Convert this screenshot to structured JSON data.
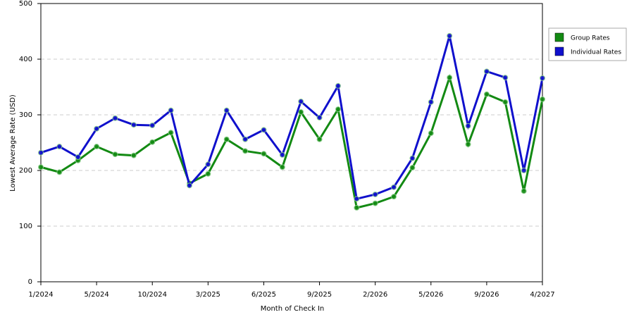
{
  "chart_data": {
    "type": "line",
    "x_label": "Month of Check In",
    "y_label": "Lowest Average Rate (USD)",
    "categories": [
      "1/2024",
      null,
      null,
      "5/2024",
      null,
      null,
      "10/2024",
      null,
      null,
      "3/2025",
      null,
      null,
      "6/2025",
      null,
      null,
      "9/2025",
      null,
      null,
      "2/2026",
      null,
      null,
      "5/2026",
      null,
      null,
      "9/2026",
      null,
      null,
      "4/2027"
    ],
    "series": [
      {
        "name": "Group Rates",
        "color": "#138a13",
        "values": [
          206,
          197,
          218,
          243,
          229,
          227,
          251,
          268,
          177,
          194,
          256,
          235,
          230,
          206,
          305,
          256,
          310,
          133,
          141,
          153,
          205,
          267,
          367,
          247,
          337,
          323,
          163,
          328
        ]
      },
      {
        "name": "Individual Rates",
        "color": "#1010cc",
        "values": [
          232,
          243,
          224,
          275,
          294,
          282,
          281,
          308,
          173,
          211,
          308,
          256,
          273,
          228,
          324,
          295,
          352,
          149,
          157,
          170,
          222,
          323,
          442,
          280,
          378,
          367,
          200,
          366
        ]
      }
    ],
    "ylim": [
      0,
      500
    ],
    "yticks": [
      0,
      100,
      200,
      300,
      400,
      500
    ],
    "grid": true,
    "legend": "right"
  }
}
